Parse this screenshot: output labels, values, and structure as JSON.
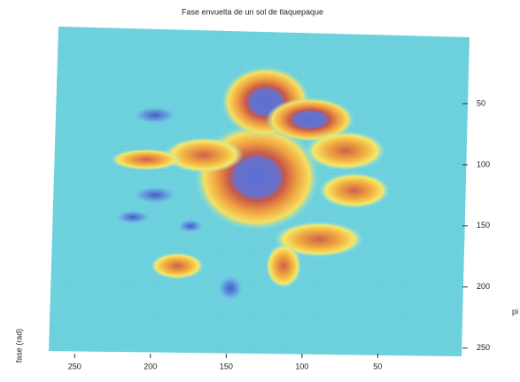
{
  "chart_data": {
    "type": "surface",
    "title": "Fase envuelta de un sol de tlaquepaque",
    "xlim": [
      0,
      270
    ],
    "xticks": [
      250,
      200,
      150,
      100,
      50
    ],
    "ylim": [
      0,
      256
    ],
    "yticks": [
      50,
      100,
      150,
      200,
      250
    ],
    "ylabel": "pi",
    "zlabel": "fase (rad)"
  }
}
